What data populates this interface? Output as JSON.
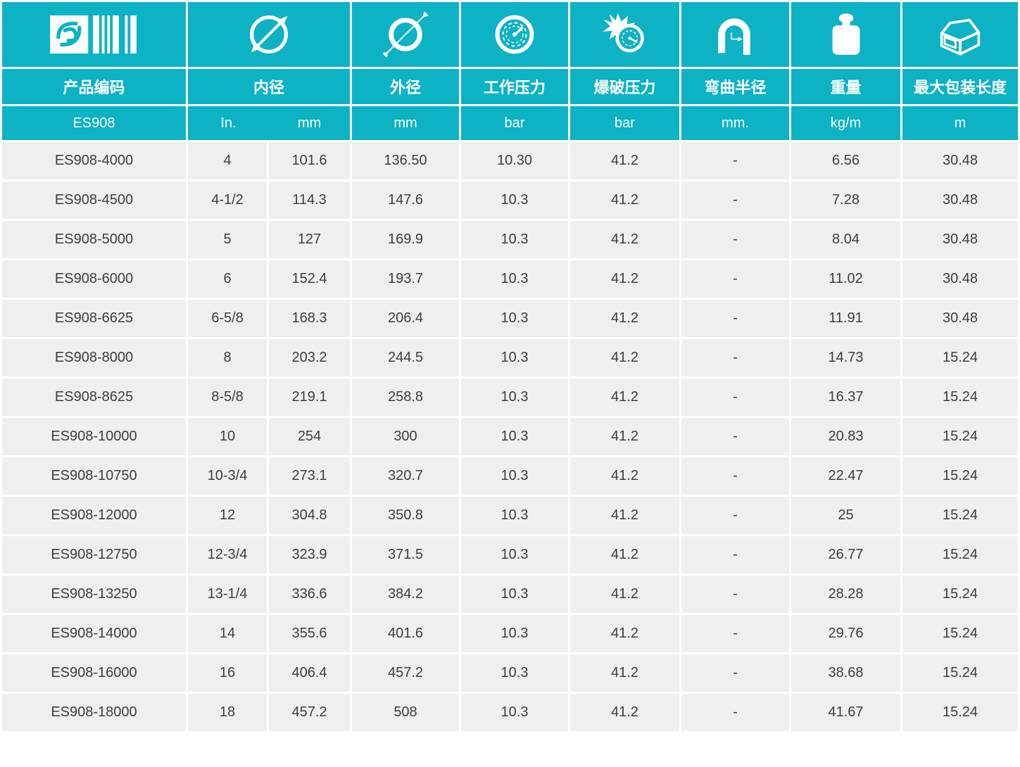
{
  "colors": {
    "teal": "#0db2c5",
    "row_bg": "#efefef",
    "text": "#3d3d3d",
    "header_text": "#ffffff"
  },
  "table": {
    "columns": [
      {
        "id": "code",
        "icon": "barcode-icon",
        "label": "产品编码",
        "unit": "ES908"
      },
      {
        "id": "inner_diameter",
        "icon": "inner-diameter-icon",
        "label": "内径",
        "units": [
          "In.",
          "mm"
        ]
      },
      {
        "id": "outer_diameter",
        "icon": "outer-diameter-icon",
        "label": "外径",
        "unit": "mm"
      },
      {
        "id": "working_pressure",
        "icon": "working-pressure-icon",
        "label": "工作压力",
        "unit": "bar"
      },
      {
        "id": "burst_pressure",
        "icon": "burst-pressure-icon",
        "label": "爆破压力",
        "unit": "bar"
      },
      {
        "id": "bend_radius",
        "icon": "bend-radius-icon",
        "label": "弯曲半径",
        "unit": "mm."
      },
      {
        "id": "weight",
        "icon": "weight-icon",
        "label": "重量",
        "unit": "kg/m"
      },
      {
        "id": "package_length",
        "icon": "package-length-icon",
        "label": "最大包装长度",
        "unit": "m"
      }
    ],
    "columns_flat": [
      "code",
      "in_in",
      "in_mm",
      "od_mm",
      "wp_bar",
      "bp_bar",
      "br_mm",
      "wt_kgm",
      "len_m"
    ],
    "rows": [
      [
        "ES908-4000",
        "4",
        "101.6",
        "136.50",
        "10.30",
        "41.2",
        "-",
        "6.56",
        "30.48"
      ],
      [
        "ES908-4500",
        "4-1/2",
        "114.3",
        "147.6",
        "10.3",
        "41.2",
        "-",
        "7.28",
        "30.48"
      ],
      [
        "ES908-5000",
        "5",
        "127",
        "169.9",
        "10.3",
        "41.2",
        "-",
        "8.04",
        "30.48"
      ],
      [
        "ES908-6000",
        "6",
        "152.4",
        "193.7",
        "10.3",
        "41.2",
        "-",
        "11.02",
        "30.48"
      ],
      [
        "ES908-6625",
        "6-5/8",
        "168.3",
        "206.4",
        "10.3",
        "41.2",
        "-",
        "11.91",
        "30.48"
      ],
      [
        "ES908-8000",
        "8",
        "203.2",
        "244.5",
        "10.3",
        "41.2",
        "-",
        "14.73",
        "15.24"
      ],
      [
        "ES908-8625",
        "8-5/8",
        "219.1",
        "258.8",
        "10.3",
        "41.2",
        "-",
        "16.37",
        "15.24"
      ],
      [
        "ES908-10000",
        "10",
        "254",
        "300",
        "10.3",
        "41.2",
        "-",
        "20.83",
        "15.24"
      ],
      [
        "ES908-10750",
        "10-3/4",
        "273.1",
        "320.7",
        "10.3",
        "41.2",
        "-",
        "22.47",
        "15.24"
      ],
      [
        "ES908-12000",
        "12",
        "304.8",
        "350.8",
        "10.3",
        "41.2",
        "-",
        "25",
        "15.24"
      ],
      [
        "ES908-12750",
        "12-3/4",
        "323.9",
        "371.5",
        "10.3",
        "41.2",
        "-",
        "26.77",
        "15.24"
      ],
      [
        "ES908-13250",
        "13-1/4",
        "336.6",
        "384.2",
        "10.3",
        "41.2",
        "-",
        "28.28",
        "15.24"
      ],
      [
        "ES908-14000",
        "14",
        "355.6",
        "401.6",
        "10.3",
        "41.2",
        "-",
        "29.76",
        "15.24"
      ],
      [
        "ES908-16000",
        "16",
        "406.4",
        "457.2",
        "10.3",
        "41.2",
        "-",
        "38.68",
        "15.24"
      ],
      [
        "ES908-18000",
        "18",
        "457.2",
        "508",
        "10.3",
        "41.2",
        "-",
        "41.67",
        "15.24"
      ]
    ]
  }
}
